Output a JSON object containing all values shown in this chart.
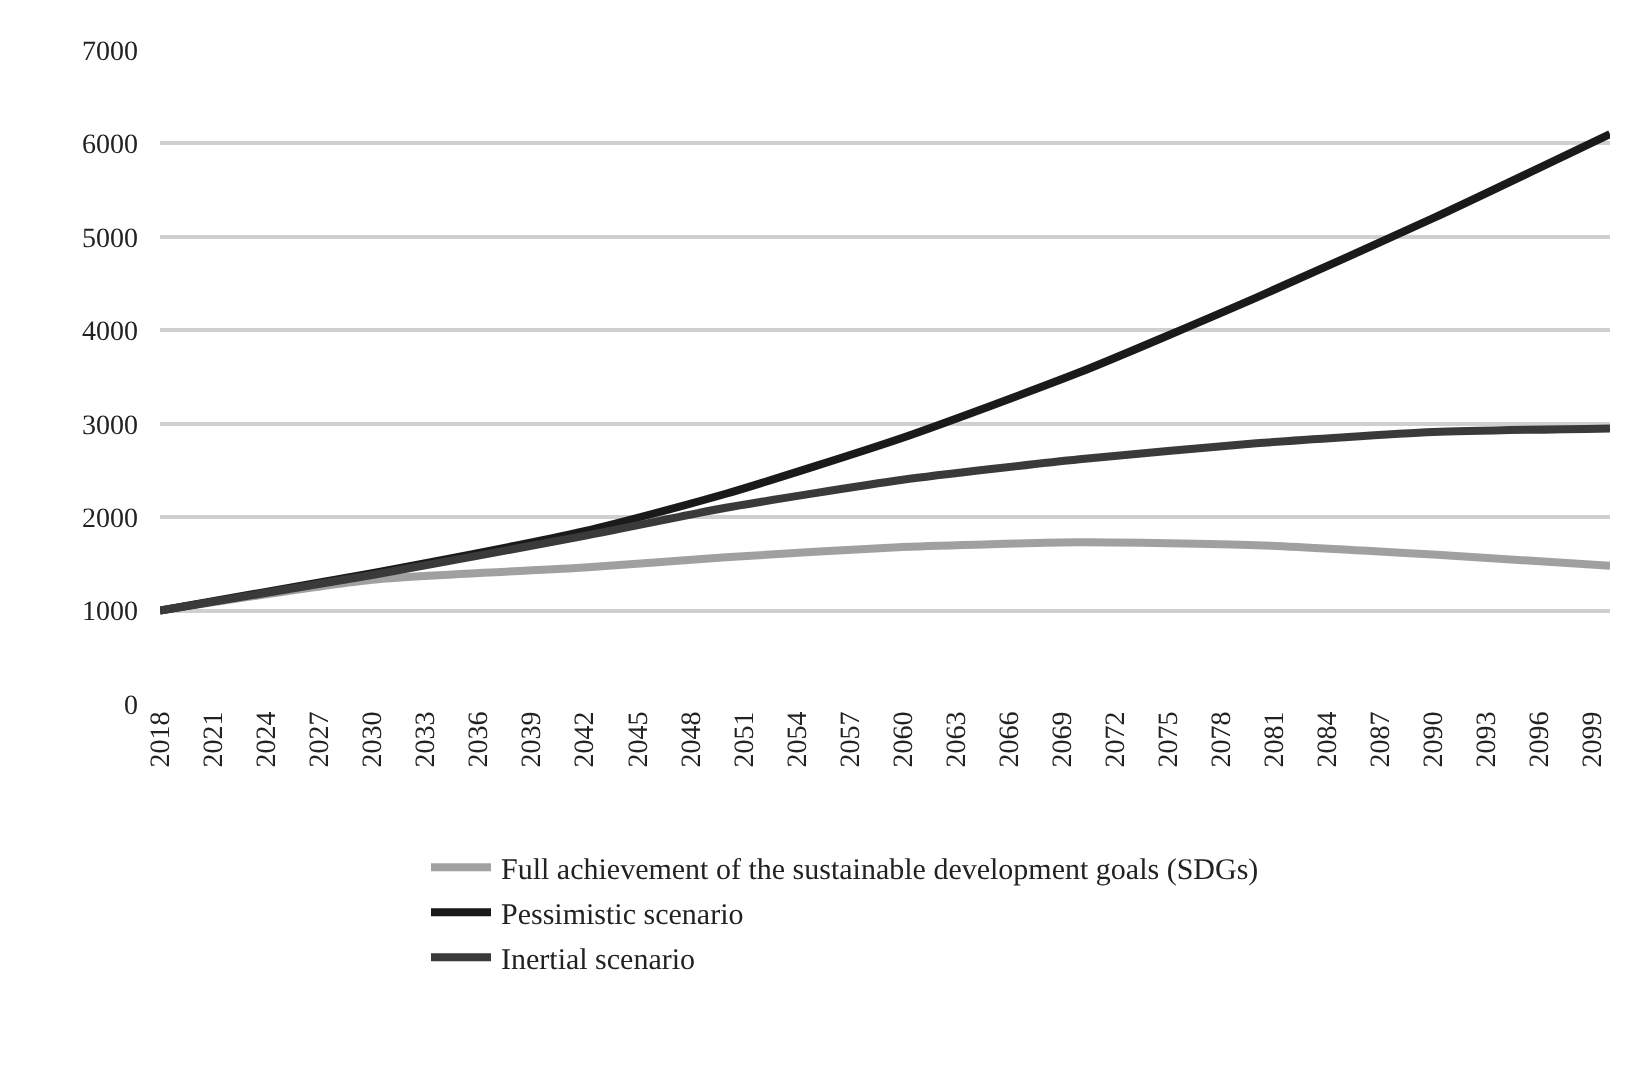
{
  "chart_data": {
    "type": "line",
    "x": [
      2018,
      2030,
      2042,
      2050,
      2060,
      2070,
      2080,
      2090,
      2100
    ],
    "series": [
      {
        "name": "Full achievement of the sustainable development goals (SDGs)",
        "color": "#a0a0a0",
        "values": [
          1000,
          1330,
          1460,
          1570,
          1680,
          1730,
          1700,
          1600,
          1480
        ]
      },
      {
        "name": "Pessimistic scenario",
        "color": "#1a1a1a",
        "values": [
          1000,
          1400,
          1850,
          2250,
          2850,
          3550,
          4350,
          5200,
          6100
        ]
      },
      {
        "name": "Inertial scenario",
        "color": "#3a3a3a",
        "values": [
          1000,
          1380,
          1800,
          2100,
          2400,
          2620,
          2790,
          2910,
          2950
        ]
      }
    ],
    "xlim": [
      2018,
      2100
    ],
    "xticks": [
      2018,
      2021,
      2024,
      2027,
      2030,
      2033,
      2036,
      2039,
      2042,
      2045,
      2048,
      2051,
      2054,
      2057,
      2060,
      2063,
      2066,
      2069,
      2072,
      2075,
      2078,
      2081,
      2084,
      2087,
      2090,
      2093,
      2096,
      2099
    ],
    "ylim": [
      0,
      7000
    ],
    "yticks": [
      0,
      1000,
      2000,
      3000,
      4000,
      5000,
      6000,
      7000
    ],
    "grid": "y",
    "legend": "bottom",
    "marker": "none",
    "line_style": "solid"
  }
}
